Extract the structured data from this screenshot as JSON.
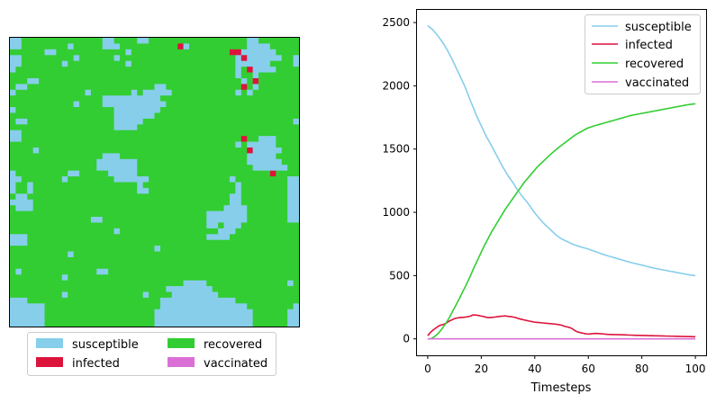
{
  "colors": {
    "susceptible": "#87CEEB",
    "infected": "#DC143C",
    "recovered": "#32CD32",
    "vaccinated": "#DA70D6"
  },
  "grid_map": {
    "type": "heatmap",
    "rows": 50,
    "cols": 50,
    "rows_data": [
      "SSRRRRRRRRRRRRRRSSRRRRSSRRRRRRRRRRRRRRRRRSSRRRRRRR",
      "SSRRRRRRRRSRRRRRSSSRRRRRRRRRRISRRRRRRRRRRSSSSRRRRR",
      "RRRRRRSSRRRRRRRRRRRRSRRRRRRRRRRRRRRRRRIISSSSSSRRRR",
      "SSRRRRRRRRRSRRRRRRSRRRRRRRRRRRRRRRRRRRRSISSSSSSRRS",
      "SSRRRRRRRSRRRRRRRRRRSRRRRRRRRRRRRRRRRRRSSSSSSRRRRS",
      "SRRRRRRRRRRRRRRRRRRRRRRRRRRRRRRRRRRRRRRSRISSSSRRRR",
      "RRRRRRRRRRRRRRRRRRRRRRRRRRRRRRRRRRRRRRRSRRSRRRRRRR",
      "RRRSSRRRRRRRRRRRRRRRRRRRRRRRRRRRRRRRRRRRSRIRRRRRRR",
      "RSSRRRRRRRRRRRRRRRRRRRRRRSSRRRRRRRRRRRRRIRSRRRRRRR",
      "SRRRRRRRRRRRRSRRRRRRRSRSSSSSRRRRRRRRRRRSRSRRRRRRRR",
      "RRRRRRRRRRRRRRRRSSSSSSSSSSRRRRRRRRRRRRRRRRRRRRRRRR",
      "RRRRRRRRRRRSRRRRSSSSSSSSSSSRRRRRRRRRRRRRRRRRRRRRRR",
      "SRRRRRRRRRRRRRRRRRSSSSSSSSRRRRRRRRRRRRRRRRRRRRRRRR",
      "RRRRRRRRRRRRRRRRRRSSSSSSSRRRRRRRRRRRRRRRRRRRRRRRRR",
      "RSSRRRRRRRRRRRRRRRSSSSSRRRRRRRRRRRRRRRRRRRRRRRRRRS",
      "RRRRRRRRRRRRRRRRRRSSSSRRRRRRRRRRRRRRRRRRRRRRRRRRRR",
      "SSRRRRRRRRRRRRRRRRRRRRRRRRRRRRRRRRRRRRRRRRRRRRRRRR",
      "SSRRRRRRRRRRRRRRRRRRRRRRRRRRRRRRRRRRRRRRIRRSSSRRRR",
      "RRRRRRRRRRRRRRRRRRRRRRRRRRRRRRRRRRRRRRRSRSSSSSRRRR",
      "RRRRSRRRRRRRRRRRRRRRRRRRRRRRRRRRRRRRRRRRRISSSSSRRR",
      "RRRRRRRRRRRRRRRRSSSRRRRRRRRRRRRRRRRRRRRRRSSSSSRRRR",
      "RRRRRRRRRRRRRRRSSSSSSSRRRRRRRRRRRRRRRRRRRSSSSSSRRR",
      "RRRRRRRRRRRRRRRSSSSSSSRRRRRRRRRRRRRRRRRRRRSSSSSSRR",
      "SRRRRRRRRRSSRRRRRSSSSSRRRRRRRRRRRRRRRRRRRRRRRIRRRR",
      "SSRRRRRRRSRRRRRRRRSSSSSSRRRRRRRRRRRRRRSRRRRRRRRRSS",
      "SRRSRRRRRRRRRRRRRRRRRRSRRRRRRRRRRRRRRRRSRRRRRRRRSS",
      "SRRSRRRRRRRRRRRRRRRRRRSSRRRRRRRRRRRRRRRSRRRRRRRRSS",
      "RSSRRRRRRRRRRRRRRRRRRRRRRRRRRRRRRRRRRRSSRRRRRRRRSS",
      "SSSSRRRRRRRRRRRRRRRRRRRRRRRRRRRRRRRRRRSSRRRRRRRRSS",
      "RSSSRRRRRRRRRRRRRRRRRRRRRRRRRRRRRRRRRSSSSRRRRRRRSS",
      "RRRRRRRRRRRRRRRRRRRRRRRRRRRRRRRRRRSSSSSSSRRRRRRRSS",
      "RRRRRRRRRRRRRRSSRRRRRRRRRRRRRRRRRRSSSSSSSRRRRRRRSS",
      "RRRRRRRRRRRRRRRRRRRRRRRRRRRRRRRRRRSSRSSSRRRRRRRRRR",
      "RRRRRRRRRRRRRRRRRRSRRRRRRRRRRRRRRRRRSSSRRRRRRRRRRR",
      "SSSRRRRRRRRRRRRRRRRRRRRRRRRRRRRRRRSSSSRRRRRRRRRRRR",
      "SSSRRRRRRRRRRRRRRRRRRRRRRRRRRRRRRRRRRRRRRRRRRRRRRR",
      "RRRRRRRRRRRRRRRRRRRRRRRRRSRRRRRRRRRRRRRRRRRRRRRRRR",
      "RRRRRRRRRRSRRRRRRRRRRRRRRRRRRRRRRRRRRRRRRRRRRRRRRR",
      "RRRRRRRRRRRRRRRRRRRRRRRRRRRRRRRRRRRRRRRRRRRRRRRRRR",
      "RRRRRRRRRRRRRRRRRRRRRRRRRRRRRRRRRRRRRRRRRRRRRRRRRR",
      "RSRRRRRRRRRRRRRSSRRRRRRRRRRRRRRRRRRRRRRRRRRRRRRRRR",
      "RRRRRRRRRSRRRRRRRRRRRRRRRRRRRRRRRRRRRRRRRRRRRRRRRR",
      "RRRRRRRRRRRRRRRRRRRRRRRRRRRRRRSSSSRRRRRRRRRRRRRRSR",
      "RRRRRRRRRRRRRRRRRRRRRRRRRRRSSSSSSSSRRRRRRRRRRRRRRR",
      "RRRRRRRRRSRRRRRRRRRRRRRSRRRRSSSSSSSSRRRRRRRRRRRRRR",
      "SSSRRRRRRRRRRRRRRRRRRRRRRRSSSSSSSSSSSSSRRRRRRRRRRR",
      "SSSSSSRRRRRRRRRRRRRRRRRRRRSSSSSSSSSSSSSSSRRRRRRRRS",
      "SSSSSSRRRRRRRRRRRRRRRRRRRSSSSSSSSSSSSSSSSSRRRRRRSS",
      "SSSSSSRRRRRRRRRRRRRRRRRRRSSSSSSSSSSSSSSSSSRRRRRRSS",
      "SSSSSSRRRRRRRRRRRRRRRRRRRSSSSSSSSSSSSSSSSSRRRRRRSS"
    ],
    "legend": [
      "susceptible",
      "infected",
      "recovered",
      "vaccinated"
    ]
  },
  "chart_data": {
    "type": "line",
    "xlabel": "Timesteps",
    "xlim": [
      -4,
      104
    ],
    "ylim": [
      -130,
      2600
    ],
    "x_ticks": [
      0,
      20,
      40,
      60,
      80,
      100
    ],
    "y_ticks": [
      0,
      500,
      1000,
      1500,
      2000,
      2500
    ],
    "x": [
      0,
      1,
      2,
      3,
      4,
      5,
      6,
      7,
      8,
      9,
      10,
      11,
      12,
      13,
      14,
      15,
      16,
      17,
      18,
      19,
      20,
      21,
      22,
      23,
      24,
      25,
      26,
      27,
      28,
      29,
      30,
      31,
      32,
      33,
      34,
      35,
      36,
      37,
      38,
      39,
      40,
      41,
      42,
      43,
      44,
      45,
      46,
      47,
      48,
      49,
      50,
      51,
      52,
      53,
      54,
      55,
      56,
      57,
      58,
      59,
      60,
      61,
      62,
      63,
      64,
      65,
      66,
      67,
      68,
      69,
      70,
      71,
      72,
      73,
      74,
      75,
      76,
      77,
      78,
      79,
      80,
      81,
      82,
      83,
      84,
      85,
      86,
      87,
      88,
      89,
      90,
      91,
      92,
      93,
      94,
      95,
      96,
      97,
      98,
      99,
      100
    ],
    "legend_position": "upper right",
    "series": [
      {
        "name": "susceptible",
        "color": "#87CEEB",
        "values": [
          2475,
          2460,
          2440,
          2415,
          2390,
          2360,
          2330,
          2295,
          2255,
          2215,
          2170,
          2125,
          2080,
          2035,
          1990,
          1935,
          1880,
          1830,
          1775,
          1730,
          1685,
          1640,
          1595,
          1560,
          1520,
          1480,
          1440,
          1400,
          1360,
          1325,
          1290,
          1260,
          1230,
          1195,
          1165,
          1135,
          1110,
          1085,
          1055,
          1025,
          995,
          970,
          945,
          920,
          900,
          880,
          860,
          840,
          820,
          805,
          790,
          780,
          770,
          760,
          750,
          742,
          735,
          728,
          722,
          716,
          710,
          702,
          695,
          688,
          680,
          672,
          665,
          658,
          652,
          646,
          640,
          633,
          627,
          621,
          615,
          609,
          603,
          598,
          593,
          588,
          583,
          578,
          572,
          567,
          562,
          557,
          553,
          549,
          545,
          541,
          537,
          533,
          529,
          525,
          521,
          517,
          513,
          509,
          505,
          502,
          500
        ]
      },
      {
        "name": "infected",
        "color": "#DC143C",
        "values": [
          25,
          50,
          70,
          85,
          100,
          110,
          115,
          125,
          140,
          150,
          160,
          165,
          168,
          170,
          172,
          175,
          180,
          190,
          188,
          185,
          180,
          176,
          170,
          168,
          170,
          172,
          175,
          178,
          180,
          182,
          178,
          176,
          172,
          168,
          160,
          155,
          150,
          145,
          140,
          136,
          132,
          130,
          128,
          126,
          124,
          122,
          120,
          118,
          116,
          112,
          108,
          100,
          95,
          90,
          80,
          65,
          55,
          50,
          45,
          40,
          38,
          40,
          42,
          43,
          42,
          40,
          38,
          36,
          35,
          34,
          34,
          33,
          33,
          32,
          31,
          30,
          30,
          29,
          28,
          28,
          27,
          27,
          26,
          25,
          25,
          24,
          24,
          23,
          23,
          22,
          22,
          21,
          21,
          20,
          20,
          19,
          19,
          18,
          18,
          17,
          17
        ]
      },
      {
        "name": "recovered",
        "color": "#32CD32",
        "values": [
          0,
          0,
          10,
          25,
          45,
          70,
          100,
          130,
          165,
          205,
          245,
          285,
          325,
          370,
          410,
          455,
          500,
          550,
          595,
          640,
          685,
          730,
          770,
          810,
          850,
          885,
          920,
          955,
          990,
          1025,
          1055,
          1085,
          1115,
          1145,
          1175,
          1205,
          1235,
          1260,
          1285,
          1310,
          1335,
          1360,
          1380,
          1400,
          1420,
          1440,
          1460,
          1478,
          1496,
          1514,
          1530,
          1546,
          1562,
          1578,
          1594,
          1610,
          1622,
          1634,
          1646,
          1658,
          1668,
          1675,
          1682,
          1688,
          1694,
          1700,
          1706,
          1712,
          1718,
          1724,
          1730,
          1736,
          1742,
          1748,
          1754,
          1760,
          1766,
          1770,
          1774,
          1778,
          1782,
          1786,
          1790,
          1794,
          1798,
          1802,
          1806,
          1810,
          1814,
          1818,
          1822,
          1826,
          1830,
          1834,
          1838,
          1842,
          1846,
          1850,
          1853,
          1856,
          1858
        ]
      },
      {
        "name": "vaccinated",
        "color": "#DA70D6",
        "values": [
          0,
          0,
          0,
          0,
          0,
          0,
          0,
          0,
          0,
          0,
          0,
          0,
          0,
          0,
          0,
          0,
          0,
          0,
          0,
          0,
          0,
          0,
          0,
          0,
          0,
          0,
          0,
          0,
          0,
          0,
          0,
          0,
          0,
          0,
          0,
          0,
          0,
          0,
          0,
          0,
          0,
          0,
          0,
          0,
          0,
          0,
          0,
          0,
          0,
          0,
          0,
          0,
          0,
          0,
          0,
          0,
          0,
          0,
          0,
          0,
          0,
          0,
          0,
          0,
          0,
          0,
          0,
          0,
          0,
          0,
          0,
          0,
          0,
          0,
          0,
          0,
          0,
          0,
          0,
          0,
          0,
          0,
          0,
          0,
          0,
          0,
          0,
          0,
          0,
          0,
          0,
          0,
          0,
          0,
          0,
          0,
          0,
          0,
          0,
          0,
          0
        ]
      }
    ]
  }
}
